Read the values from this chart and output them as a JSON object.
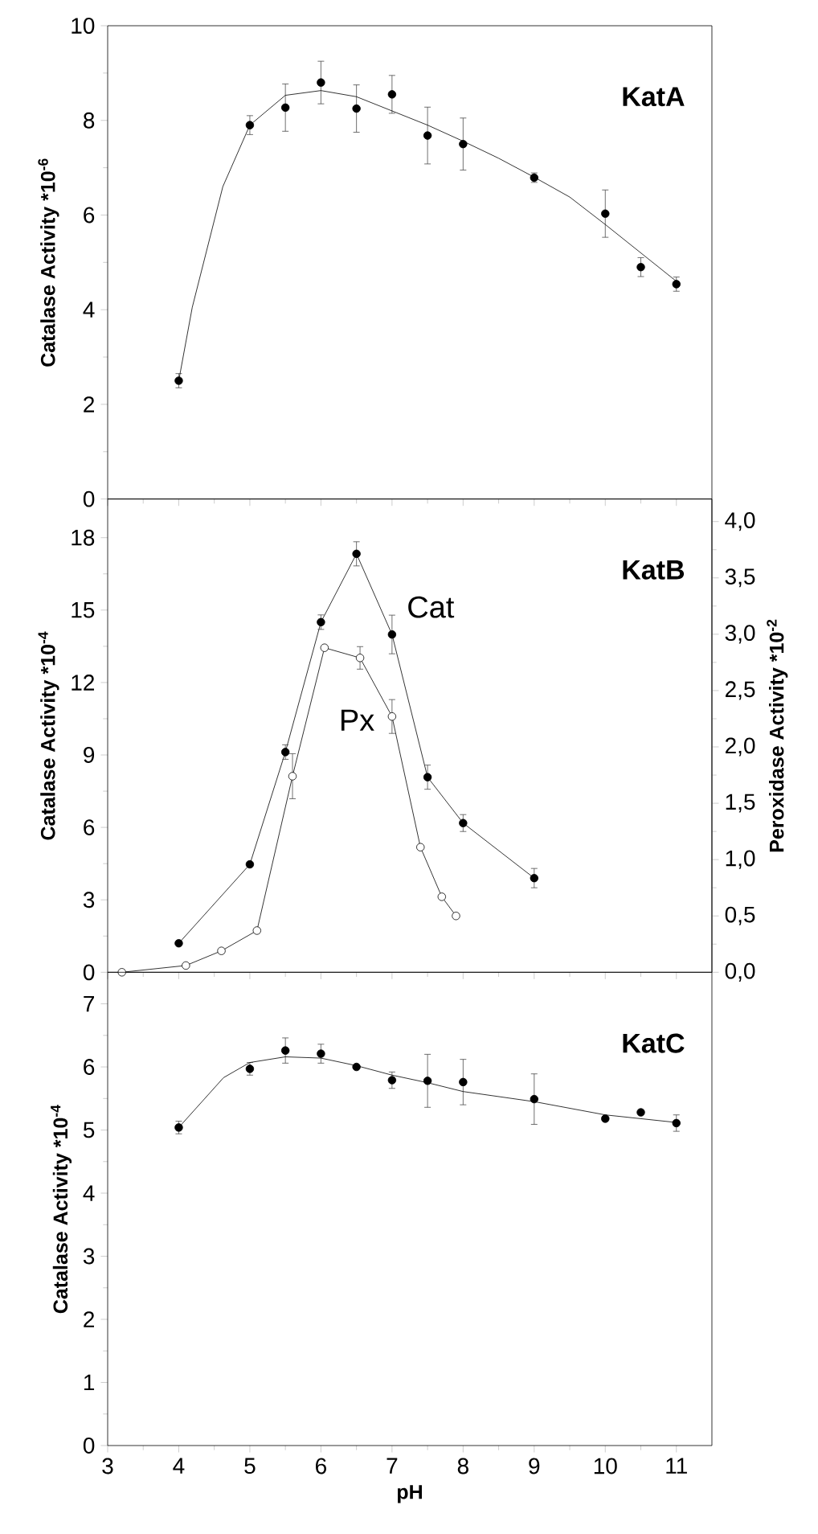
{
  "chart_data": [
    {
      "type": "scatter",
      "annotations": [
        "KatA"
      ],
      "ylabel": "Catalase Activity *10$^{-6}$",
      "xlim": [
        3,
        11.5
      ],
      "xticks": [
        3,
        4,
        5,
        6,
        7,
        8,
        9,
        10,
        11
      ],
      "ylim": [
        0,
        10
      ],
      "yticks": [
        0,
        2,
        4,
        6,
        8,
        10
      ],
      "tick_labels": "y",
      "marker": "circle",
      "series": [
        {
          "color": "#000000",
          "x": [
            4,
            5,
            5.5,
            6,
            6.5,
            7,
            7.5,
            8,
            9,
            10,
            10.5,
            11
          ],
          "values": [
            2.5,
            7.9,
            8.27,
            8.8,
            8.25,
            8.55,
            7.68,
            7.5,
            6.79,
            6.03,
            4.9,
            4.54
          ],
          "errors": [
            0.15,
            0.2,
            0.5,
            0.45,
            0.5,
            0.4,
            0.6,
            0.55,
            0.1,
            0.5,
            0.2,
            0.15
          ]
        },
        {
          "type": "line",
          "marker": "none",
          "color": "#000000",
          "x": [
            4,
            4.19,
            4.62,
            5,
            5.5,
            6,
            6.5,
            7,
            7.5,
            8,
            8.5,
            9,
            9.5,
            10,
            10.5,
            11
          ],
          "values": [
            2.5,
            4.05,
            6.6,
            7.9,
            8.53,
            8.63,
            8.5,
            8.2,
            7.9,
            7.56,
            7.2,
            6.8,
            6.38,
            5.8,
            5.2,
            4.6
          ]
        }
      ]
    },
    {
      "type": "line",
      "annotations": [
        "KatB"
      ],
      "ylabel": "Catalase Activity *10$^{-4}$",
      "y2label": "Peroxidase Activity *10$^{-2}$",
      "xlim": [
        3,
        11.5
      ],
      "xticks": [
        3,
        4,
        5,
        6,
        7,
        8,
        9,
        10,
        11
      ],
      "ylim": [
        0,
        19.6
      ],
      "yticks": [
        0,
        3,
        6,
        9,
        12,
        15,
        18
      ],
      "y2lim": [
        0,
        4.2
      ],
      "y2ticks": [
        {
          "value": 0,
          "label": "0,0"
        },
        {
          "value": 0.5,
          "label": "0,5"
        },
        {
          "value": 1,
          "label": "1,0"
        },
        {
          "value": 1.5,
          "label": "1,5"
        },
        {
          "value": 2,
          "label": "2,0"
        },
        {
          "value": 2.5,
          "label": "2,5"
        },
        {
          "value": 3,
          "label": "3,0"
        },
        {
          "value": 3.5,
          "label": "3,5"
        },
        {
          "value": 4,
          "label": "4,0"
        }
      ],
      "tick_labels": "y",
      "marker": "circle",
      "series": [
        {
          "name": "Cat",
          "color": "#000000",
          "x": [
            4,
            5,
            5.5,
            6,
            6.5,
            7,
            7.5,
            8,
            9
          ],
          "values": [
            1.2,
            4.47,
            9.12,
            14.5,
            17.33,
            13.99,
            8.08,
            6.18,
            3.9
          ],
          "errors": [
            null,
            null,
            0.3,
            0.3,
            0.5,
            0.8,
            0.5,
            0.35,
            0.4
          ]
        },
        {
          "name": "Px",
          "axis": "y2",
          "color": "#000000",
          "x": [
            3.2,
            4.1,
            4.6,
            5.1,
            5.6,
            6.05,
            6.55,
            7.0,
            7.4,
            7.7,
            7.9
          ],
          "values": [
            0,
            0.06,
            0.19,
            0.37,
            1.74,
            2.88,
            2.79,
            2.27,
            1.11,
            0.67,
            0.5
          ],
          "errors": [
            null,
            null,
            null,
            null,
            0.2,
            null,
            0.1,
            0.15,
            null,
            null,
            null
          ]
        }
      ]
    },
    {
      "type": "scatter",
      "annotations": [
        "KatC"
      ],
      "xlabel": "pH",
      "ylabel": "Catalase Activity *10$^{-4}$",
      "xlim": [
        3,
        11.5
      ],
      "xticks": [
        3,
        4,
        5,
        6,
        7,
        8,
        9,
        10,
        11
      ],
      "ylim": [
        0,
        7.5
      ],
      "yticks": [
        0,
        1,
        2,
        3,
        4,
        5,
        6,
        7
      ],
      "marker": "circle",
      "series": [
        {
          "color": "#000000",
          "x": [
            4,
            5,
            5.5,
            6,
            6.5,
            7,
            7.5,
            8,
            9,
            10,
            10.5,
            11
          ],
          "values": [
            5.04,
            5.97,
            6.26,
            6.21,
            6.0,
            5.79,
            5.78,
            5.76,
            5.49,
            5.18,
            5.28,
            5.11
          ],
          "errors": [
            0.1,
            0.1,
            0.2,
            0.15,
            null,
            0.13,
            0.42,
            0.36,
            0.4,
            null,
            null,
            0.13
          ]
        },
        {
          "type": "line",
          "marker": "none",
          "color": "#000000",
          "x": [
            4,
            4.63,
            5,
            5.5,
            6,
            6.5,
            7,
            7.5,
            8,
            9,
            10,
            11
          ],
          "values": [
            5.04,
            5.83,
            6.07,
            6.16,
            6.14,
            6.02,
            5.87,
            5.75,
            5.61,
            5.45,
            5.24,
            5.12
          ]
        }
      ]
    }
  ]
}
